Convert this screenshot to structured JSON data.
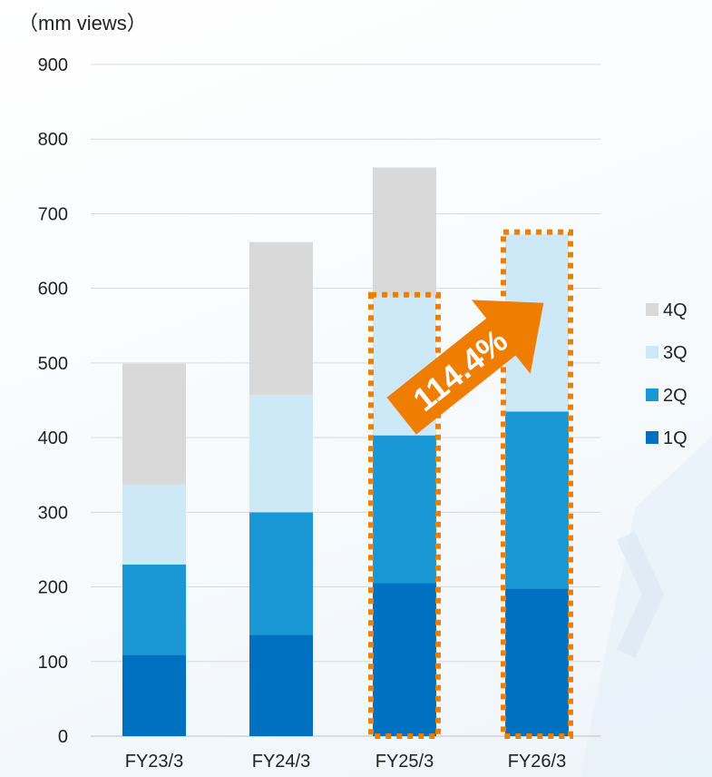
{
  "chart_data": {
    "type": "bar",
    "stacked": true,
    "unit_label": "（mm views）",
    "categories": [
      "FY23/3",
      "FY24/3",
      "FY25/3",
      "FY26/3"
    ],
    "series": [
      {
        "name": "1Q",
        "color": "#0070C0",
        "values": [
          109,
          136,
          205,
          198
        ]
      },
      {
        "name": "2Q",
        "color": "#1A98D5",
        "values": [
          121,
          164,
          198,
          237
        ]
      },
      {
        "name": "3Q",
        "color": "#CDE9F8",
        "values": [
          107,
          157,
          186,
          238
        ]
      },
      {
        "name": "4Q",
        "color": "#D9D9D9",
        "values": [
          162,
          205,
          173,
          null
        ]
      }
    ],
    "ylim": [
      0,
      900
    ],
    "yticks": [
      0,
      100,
      200,
      300,
      400,
      500,
      600,
      700,
      800,
      900
    ],
    "grid": true,
    "legend_position": "right",
    "highlight": {
      "color": "#EE7D00",
      "categories": [
        "FY25/3",
        "FY26/3"
      ],
      "label": "114.4%"
    }
  }
}
